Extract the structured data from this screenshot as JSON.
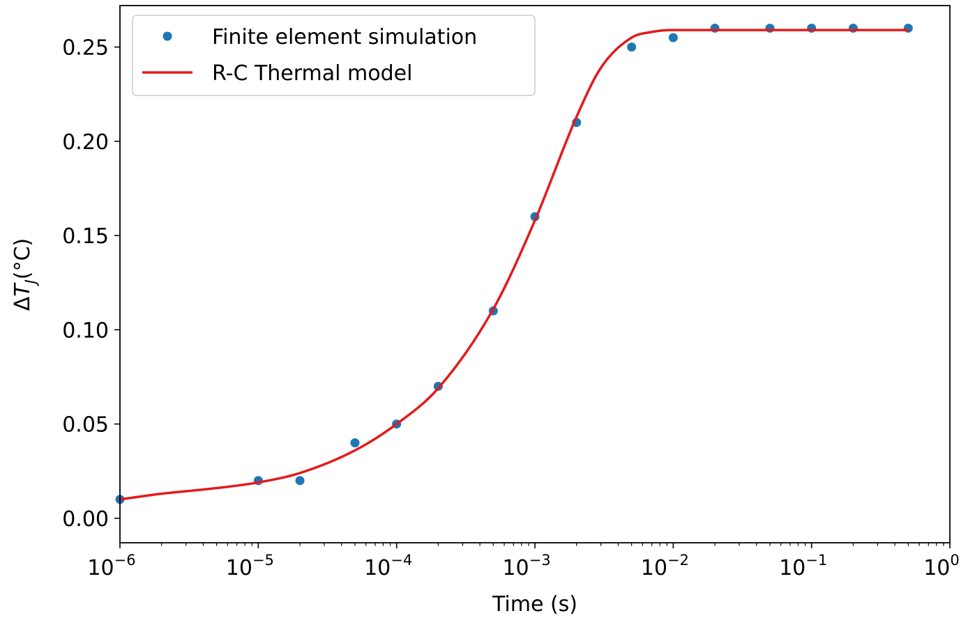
{
  "chart_data": {
    "type": "scatter",
    "title": "",
    "xlabel": "Time (s)",
    "ylabel": {
      "delta": "Δ",
      "var": "T",
      "sub": "J",
      "unit": "(°C)"
    },
    "xscale": "log",
    "xlim": [
      1e-06,
      1
    ],
    "ylim": [
      -0.013,
      0.272
    ],
    "x_ticks": [
      {
        "value": 1e-06,
        "base": "10",
        "exp": "−6"
      },
      {
        "value": 1e-05,
        "base": "10",
        "exp": "−5"
      },
      {
        "value": 0.0001,
        "base": "10",
        "exp": "−4"
      },
      {
        "value": 0.001,
        "base": "10",
        "exp": "−3"
      },
      {
        "value": 0.01,
        "base": "10",
        "exp": "−2"
      },
      {
        "value": 0.1,
        "base": "10",
        "exp": "−1"
      },
      {
        "value": 1,
        "base": "10",
        "exp": "0"
      }
    ],
    "y_ticks": [
      {
        "value": 0.0,
        "label": "0.00"
      },
      {
        "value": 0.05,
        "label": "0.05"
      },
      {
        "value": 0.1,
        "label": "0.10"
      },
      {
        "value": 0.15,
        "label": "0.15"
      },
      {
        "value": 0.2,
        "label": "0.20"
      },
      {
        "value": 0.25,
        "label": "0.25"
      }
    ],
    "grid": false,
    "legend_position": "top-left",
    "series": [
      {
        "name": "Finite element simulation",
        "kind": "scatter",
        "color": "#1f77b4",
        "x": [
          1e-06,
          1e-05,
          2e-05,
          5e-05,
          0.0001,
          0.0002,
          0.0005,
          0.001,
          0.002,
          0.005,
          0.01,
          0.02,
          0.05,
          0.1,
          0.2,
          0.5
        ],
        "y": [
          0.01,
          0.02,
          0.02,
          0.04,
          0.05,
          0.07,
          0.11,
          0.16,
          0.21,
          0.25,
          0.255,
          0.26,
          0.26,
          0.26,
          0.26,
          0.26
        ]
      },
      {
        "name": "R-C Thermal model",
        "kind": "line",
        "color": "#e31a1c",
        "x": [
          1e-06,
          2e-06,
          5e-06,
          1e-05,
          2e-05,
          5e-05,
          0.0001,
          0.0002,
          0.0005,
          0.001,
          0.002,
          0.003,
          0.005,
          0.007,
          0.01,
          0.02,
          0.05,
          0.1,
          0.2,
          0.5
        ],
        "y": [
          0.01,
          0.013,
          0.016,
          0.019,
          0.024,
          0.036,
          0.05,
          0.069,
          0.111,
          0.158,
          0.213,
          0.239,
          0.255,
          0.258,
          0.259,
          0.259,
          0.259,
          0.259,
          0.259,
          0.259
        ]
      }
    ]
  }
}
